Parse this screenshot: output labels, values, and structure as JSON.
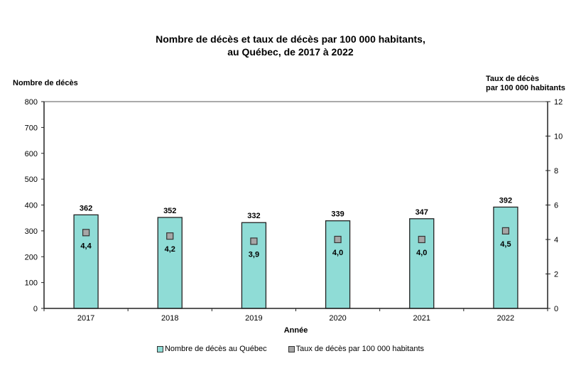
{
  "chart_data": {
    "type": "bar",
    "title": "Nombre de décès et taux de décès par 100 000 habitants,",
    "subtitle": "au Québec, de 2017 à 2022",
    "xlabel": "Année",
    "ylabel": "Nombre de décès",
    "y2label_line1": "Taux de décès",
    "y2label_line2": "par 100 000 habitants",
    "categories": [
      "2017",
      "2018",
      "2019",
      "2020",
      "2021",
      "2022"
    ],
    "series": [
      {
        "name": "Nombre de décès au Québec",
        "type": "bar",
        "axis": "left",
        "color": "#8fdcd6",
        "values": [
          362,
          352,
          332,
          339,
          347,
          392
        ],
        "labels": [
          "362",
          "352",
          "332",
          "339",
          "347",
          "392"
        ]
      },
      {
        "name": "Taux de décès par 100 000 habitants",
        "type": "marker",
        "axis": "right",
        "color": "#a6a6a6",
        "values": [
          4.4,
          4.2,
          3.9,
          4.0,
          4.0,
          4.5
        ],
        "labels": [
          "4,4",
          "4,2",
          "3,9",
          "4,0",
          "4,0",
          "4,5"
        ]
      }
    ],
    "ylim": [
      0,
      800
    ],
    "yticks": [
      0,
      100,
      200,
      300,
      400,
      500,
      600,
      700,
      800
    ],
    "y2lim": [
      0,
      12
    ],
    "y2ticks": [
      0,
      2,
      4,
      6,
      8,
      10,
      12
    ],
    "grid": false,
    "legend_position": "bottom"
  },
  "legend": {
    "item1": "Nombre de décès au Québec",
    "item2": "Taux de décès par 100 000 habitants"
  }
}
